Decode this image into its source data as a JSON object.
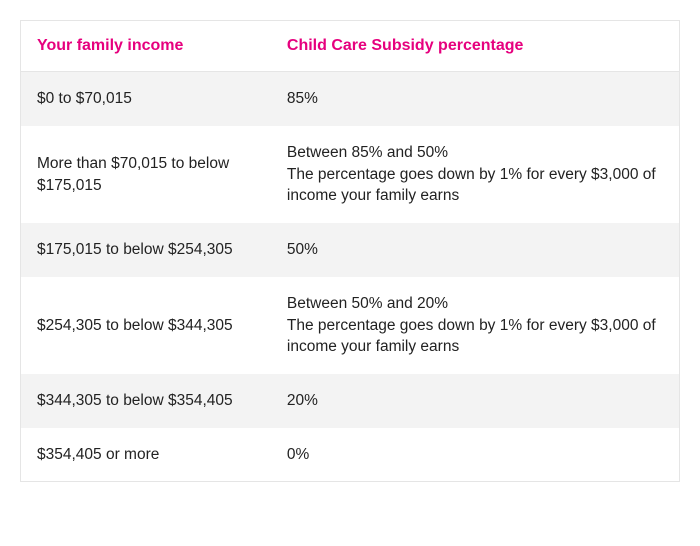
{
  "table": {
    "headers": {
      "income": "Your family income",
      "subsidy": "Child Care Subsidy percentage"
    },
    "rows": [
      {
        "income": "$0 to $70,015",
        "subsidy_line1": "85%",
        "subsidy_line2": ""
      },
      {
        "income": "More than $70,015 to below $175,015",
        "subsidy_line1": "Between 85% and 50%",
        "subsidy_line2": "The percentage goes down by 1% for every $3,000 of income your family earns"
      },
      {
        "income": "$175,015 to below $254,305",
        "subsidy_line1": "50%",
        "subsidy_line2": ""
      },
      {
        "income": "$254,305 to below $344,305",
        "subsidy_line1": "Between 50% and 20%",
        "subsidy_line2": "The percentage goes down by 1% for every $3,000 of income your family earns"
      },
      {
        "income": "$344,305 to below $354,405",
        "subsidy_line1": "20%",
        "subsidy_line2": ""
      },
      {
        "income": "$354,405 or more",
        "subsidy_line1": "0%",
        "subsidy_line2": ""
      }
    ],
    "style": {
      "header_color": "#e6007e",
      "stripe_color": "#f3f3f3",
      "border_color": "#e5e5e5",
      "text_color": "#222222",
      "background_color": "#ffffff",
      "font_size_body": 15.5,
      "font_size_header": 16,
      "col_income_width_pct": 38,
      "col_subsidy_width_pct": 62
    }
  }
}
